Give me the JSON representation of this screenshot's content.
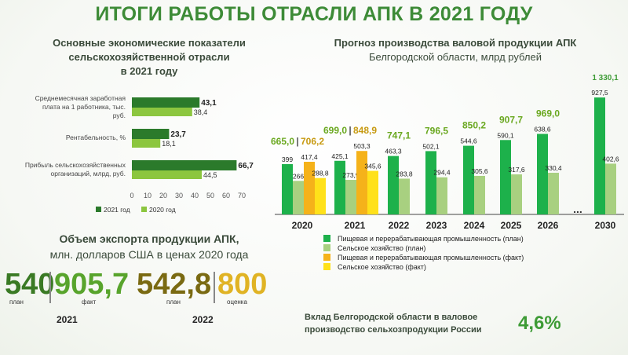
{
  "title": "ИТОГИ РАБОТЫ ОТРАСЛИ АПК В 2021 ГОДУ",
  "left_chart_title": [
    "Основные экономические показатели",
    "сельскохозяйственной отрасли",
    "в 2021 году"
  ],
  "right_chart_title": [
    "Прогноз производства валовой продукции АПК",
    "Белгородской области, млрд рублей"
  ],
  "export": {
    "title": [
      "Объем экспорта продукции АПК,",
      "млн. долларов США в ценах 2020 года"
    ],
    "y2021": {
      "year": "2021",
      "plan": "540",
      "plan_label": "план",
      "fact": "905,7",
      "fact_label": "факт"
    },
    "y2022": {
      "year": "2022",
      "plan": "542,8",
      "plan_label": "план",
      "est": "800",
      "est_label": "оценка"
    }
  },
  "contribution": {
    "text": [
      "Вклад Белгородской области в валовое",
      "производство сельхозпродукции России"
    ],
    "value": "4,6%"
  },
  "colors": {
    "green_dark": "#2b7a2b",
    "green": "#1db14b",
    "green_light": "#a8d080",
    "orange": "#f5b21a",
    "yellow": "#ffe11a",
    "title_green": "#3d8b37"
  },
  "chart_data": [
    {
      "type": "bar",
      "orientation": "horizontal",
      "categories": [
        "Среднемесячная заработная плата на 1 работника, тыс. руб.",
        "Рентабельность, %",
        "Прибыль сельскохозяйственных организаций, млрд, руб."
      ],
      "series": [
        {
          "name": "2021 год",
          "values": [
            43.1,
            23.7,
            66.7
          ],
          "labels": [
            "43,1",
            "23,7",
            "66,7"
          ]
        },
        {
          "name": "2020 год",
          "values": [
            38.4,
            18.1,
            44.5
          ],
          "labels": [
            "38,4",
            "18,1",
            "44,5"
          ]
        }
      ],
      "x_ticks": [
        "0",
        "10",
        "20",
        "30",
        "40",
        "50",
        "60",
        "70"
      ],
      "xlim": [
        0,
        70
      ],
      "legend": "bottom"
    },
    {
      "type": "bar",
      "stacked": false,
      "categories": [
        "2020",
        "2021",
        "2022",
        "2023",
        "2024",
        "2025",
        "2026",
        "2030"
      ],
      "totals": [
        "665,0",
        "699,0",
        "747,1",
        "796,5",
        "850,2",
        "907,7",
        "969,0",
        "1 330,1"
      ],
      "fact_totals": {
        "2020": "706,2",
        "2021": "848,9"
      },
      "series": [
        {
          "name": "Пищевая и перерабатывающая промышленность (план)",
          "values": [
            399,
            425.1,
            463.3,
            502.1,
            544.6,
            590.1,
            638.6,
            927.5
          ],
          "labels": [
            "399",
            "425,1",
            "463,3",
            "502,1",
            "544,6",
            "590,1",
            "638,6",
            "927,5"
          ]
        },
        {
          "name": "Сельское хозяйство (план)",
          "values": [
            266,
            273.9,
            283.8,
            294.4,
            305.6,
            317.6,
            330.4,
            402.6
          ],
          "labels": [
            "266",
            "273,9",
            "283,8",
            "294,4",
            "305,6",
            "317,6",
            "330,4",
            "402,6"
          ]
        },
        {
          "name": "Пищевая и перерабатывающая промышленность (факт)",
          "values": [
            417.4,
            503.3,
            null,
            null,
            null,
            null,
            null,
            null
          ],
          "labels": [
            "417,4",
            "503,3"
          ]
        },
        {
          "name": "Сельское хозяйство (факт)",
          "values": [
            288.8,
            345.6,
            null,
            null,
            null,
            null,
            null,
            null
          ],
          "labels": [
            "288,8",
            "345,6"
          ]
        }
      ],
      "gap_marker": "...",
      "legend": "bottom"
    }
  ]
}
